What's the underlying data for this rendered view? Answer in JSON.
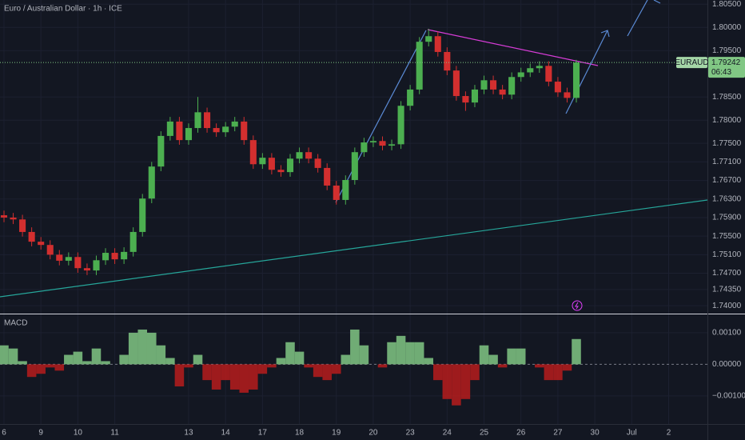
{
  "chart_data": {
    "type": "candlestick",
    "title": "Euro / Australian Dollar · 1h · ICE",
    "symbol": "EURAUD",
    "countdown": "06:43",
    "up_color": "#4caf50",
    "down_color": "#d32f2f",
    "grid": true,
    "x": [
      0,
      0.25,
      0.5,
      0.75,
      1,
      1.25,
      1.5,
      1.75,
      2,
      2.25,
      2.5,
      2.75,
      3,
      3.25,
      3.5,
      3.75,
      4,
      4.25,
      4.5,
      4.75,
      5,
      5.25,
      5.5,
      5.75,
      6,
      6.25,
      6.5,
      6.75,
      7,
      7.25,
      7.5,
      7.75,
      8,
      8.25,
      8.5,
      8.75,
      9,
      9.25,
      9.5,
      9.75,
      10,
      10.25,
      10.5,
      10.75,
      11,
      11.25,
      11.5,
      11.75,
      12,
      12.25,
      12.5,
      12.75,
      13,
      13.25,
      13.5,
      13.75,
      14,
      14.25,
      14.5,
      14.75,
      15,
      15.25,
      15.5
    ],
    "open": [
      1.7595,
      1.759,
      1.7586,
      1.7559,
      1.7538,
      1.7531,
      1.751,
      1.7497,
      1.7505,
      1.7481,
      1.7476,
      1.7498,
      1.7514,
      1.75,
      1.7516,
      1.7559,
      1.7631,
      1.77,
      1.7766,
      1.7797,
      1.7757,
      1.7783,
      1.7817,
      1.7783,
      1.7774,
      1.7786,
      1.7797,
      1.7757,
      1.7705,
      1.7719,
      1.7693,
      1.7688,
      1.7717,
      1.7731,
      1.7717,
      1.7697,
      1.7659,
      1.7628,
      1.7671,
      1.7731,
      1.7752,
      1.7755,
      1.7745,
      1.7748,
      1.7831,
      1.7866,
      1.7969,
      1.7981,
      1.7947,
      1.7907,
      1.7852,
      1.7838,
      1.7866,
      1.7886,
      1.7866,
      1.7855,
      1.7893,
      1.7903,
      1.7912,
      1.7917,
      1.7883,
      1.786,
      1.7848
    ],
    "high": [
      1.7605,
      1.76,
      1.7596,
      1.7569,
      1.7548,
      1.7541,
      1.752,
      1.7515,
      1.7515,
      1.7491,
      1.7508,
      1.7524,
      1.7524,
      1.7526,
      1.7569,
      1.7641,
      1.771,
      1.7776,
      1.7807,
      1.7807,
      1.7793,
      1.785,
      1.7827,
      1.7793,
      1.7796,
      1.7807,
      1.7807,
      1.7767,
      1.7729,
      1.7729,
      1.7703,
      1.7727,
      1.7741,
      1.7741,
      1.7727,
      1.7707,
      1.7669,
      1.7681,
      1.7741,
      1.7762,
      1.7765,
      1.7765,
      1.7758,
      1.7841,
      1.7876,
      1.7979,
      1.7997,
      1.7991,
      1.7957,
      1.7917,
      1.7862,
      1.7876,
      1.7896,
      1.7896,
      1.7876,
      1.7903,
      1.7913,
      1.7922,
      1.7927,
      1.7927,
      1.7893,
      1.787,
      1.793
    ],
    "low": [
      1.758,
      1.7576,
      1.7549,
      1.7528,
      1.7521,
      1.75,
      1.7487,
      1.7487,
      1.7471,
      1.7466,
      1.7466,
      1.7488,
      1.749,
      1.749,
      1.7506,
      1.7549,
      1.7621,
      1.769,
      1.7756,
      1.7747,
      1.7747,
      1.7773,
      1.7773,
      1.7764,
      1.7764,
      1.7776,
      1.7747,
      1.7695,
      1.7695,
      1.7683,
      1.7678,
      1.7678,
      1.7707,
      1.7707,
      1.7687,
      1.7649,
      1.7618,
      1.7618,
      1.7661,
      1.7721,
      1.7742,
      1.7735,
      1.7735,
      1.7738,
      1.7821,
      1.7856,
      1.7959,
      1.7937,
      1.7897,
      1.7842,
      1.782,
      1.7828,
      1.7856,
      1.7856,
      1.7845,
      1.7845,
      1.7883,
      1.7893,
      1.7902,
      1.7873,
      1.785,
      1.7838,
      1.7838
    ],
    "close": [
      1.759,
      1.7586,
      1.7559,
      1.7538,
      1.7531,
      1.751,
      1.7497,
      1.7505,
      1.7481,
      1.7476,
      1.7498,
      1.7514,
      1.75,
      1.7516,
      1.7559,
      1.7631,
      1.77,
      1.7766,
      1.7797,
      1.7757,
      1.7783,
      1.7817,
      1.7783,
      1.7774,
      1.7786,
      1.7797,
      1.7757,
      1.7705,
      1.7719,
      1.7693,
      1.7688,
      1.7717,
      1.7731,
      1.7717,
      1.7697,
      1.7659,
      1.7628,
      1.7671,
      1.7731,
      1.7752,
      1.7755,
      1.7745,
      1.7748,
      1.7831,
      1.7866,
      1.7969,
      1.7981,
      1.7947,
      1.7907,
      1.7852,
      1.7838,
      1.7866,
      1.7886,
      1.7866,
      1.7855,
      1.7893,
      1.7903,
      1.7912,
      1.7917,
      1.7883,
      1.786,
      1.7848,
      1.79242
    ],
    "xlim": [
      -0.108,
      19.05
    ],
    "xticks": [
      {
        "value": 0,
        "label": "6"
      },
      {
        "value": 1,
        "label": "9"
      },
      {
        "value": 2,
        "label": "10"
      },
      {
        "value": 3,
        "label": "11"
      },
      {
        "value": 5,
        "label": "13"
      },
      {
        "value": 6,
        "label": "14"
      },
      {
        "value": 7,
        "label": "17"
      },
      {
        "value": 8,
        "label": "18"
      },
      {
        "value": 9,
        "label": "19"
      },
      {
        "value": 10,
        "label": "20"
      },
      {
        "value": 11,
        "label": "23"
      },
      {
        "value": 12,
        "label": "24"
      },
      {
        "value": 13,
        "label": "25"
      },
      {
        "value": 14,
        "label": "26"
      },
      {
        "value": 15,
        "label": "27"
      },
      {
        "value": 16,
        "label": "30"
      },
      {
        "value": 17,
        "label": "Jul"
      },
      {
        "value": 18,
        "label": "2"
      }
    ],
    "ylim": [
      1.7383,
      1.8059
    ],
    "yticks": [
      {
        "value": 1.805,
        "label": "1.80500"
      },
      {
        "value": 1.8,
        "label": "1.80000"
      },
      {
        "value": 1.795,
        "label": "1.79500"
      },
      {
        "value": 1.785,
        "label": "1.78500"
      },
      {
        "value": 1.78,
        "label": "1.78000"
      },
      {
        "value": 1.775,
        "label": "1.77500"
      },
      {
        "value": 1.771,
        "label": "1.77100"
      },
      {
        "value": 1.767,
        "label": "1.76700"
      },
      {
        "value": 1.763,
        "label": "1.76300"
      },
      {
        "value": 1.759,
        "label": "1.75900"
      },
      {
        "value": 1.755,
        "label": "1.75500"
      },
      {
        "value": 1.751,
        "label": "1.75100"
      },
      {
        "value": 1.747,
        "label": "1.74700"
      },
      {
        "value": 1.7435,
        "label": "1.74350"
      },
      {
        "value": 1.74,
        "label": "1.74000"
      }
    ],
    "macd": {
      "title": "MACD",
      "type": "histogram",
      "up_color": "#81c784",
      "down_color": "#b71c1c",
      "values": [
        0.0006,
        0.0005,
        0.0001,
        -0.0004,
        -0.0003,
        -0.0001,
        -0.0002,
        0.0003,
        0.0004,
        0.0001,
        0.0005,
        0.0001,
        0.0,
        0.0003,
        0.001,
        0.0011,
        0.001,
        0.0006,
        0.0002,
        -0.0007,
        -0.0001,
        0.0003,
        -0.0005,
        -0.0008,
        -0.0005,
        -0.0008,
        -0.0009,
        -0.0008,
        -0.0003,
        -0.0001,
        0.0002,
        0.0007,
        0.0004,
        -0.0001,
        -0.0004,
        -0.0005,
        -0.0003,
        0.0003,
        0.0011,
        0.0006,
        0.0,
        -0.0001,
        0.0007,
        0.0009,
        0.0007,
        0.0007,
        0.0002,
        -0.0005,
        -0.0011,
        -0.0013,
        -0.0011,
        -0.0005,
        0.0006,
        0.0003,
        -0.0001,
        0.0005,
        0.0005,
        0.0,
        -0.0001,
        -0.0005,
        -0.0005,
        -0.0002,
        0.0008
      ],
      "ylim": [
        -0.00189,
        0.00158
      ],
      "yticks": [
        {
          "value": 0.001,
          "label": "0.00100"
        },
        {
          "value": 0,
          "label": "0.00000"
        },
        {
          "value": -0.001,
          "label": "−0.00100"
        }
      ]
    }
  }
}
